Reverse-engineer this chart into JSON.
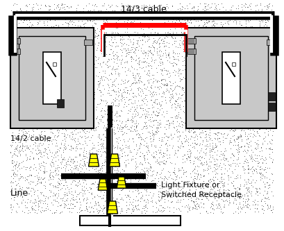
{
  "title": "14/3 cable",
  "bg_color": "#ffffff",
  "black": "#000000",
  "red": "#ff0000",
  "yellow": "#ffff00",
  "white": "#ffffff",
  "dot_bg": "#c8c8c8",
  "label_142": "14/2 cable",
  "label_line": "Line",
  "label_fixture": "Light Fixture or\nSwitched Receptacle",
  "title_fontsize": 9,
  "label_fontsize": 8,
  "outer_bg": "#ffffff",
  "switch_dot": "#c8c8c8",
  "wire_lw_outer": 9,
  "wire_lw_red": 4,
  "wire_lw_inner": 2
}
